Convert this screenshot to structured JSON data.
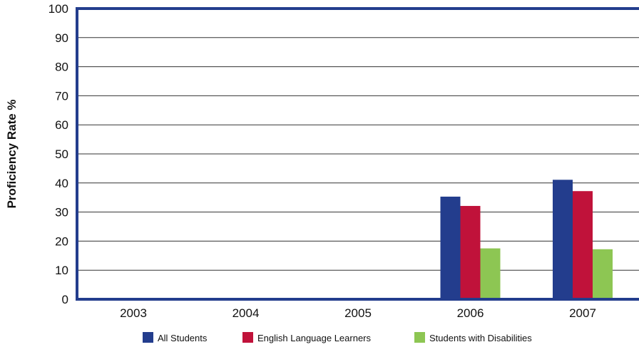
{
  "chart_data": {
    "type": "bar",
    "ylabel": "Proficiency Rate %",
    "xlabel": "",
    "categories": [
      "2003",
      "2004",
      "2005",
      "2006",
      "2007"
    ],
    "ylim": [
      0,
      100
    ],
    "yticks": [
      0,
      10,
      20,
      30,
      40,
      50,
      60,
      70,
      80,
      90,
      100
    ],
    "grid": true,
    "legend_position": "bottom",
    "series": [
      {
        "name": "All Students",
        "color": "#233d8d",
        "values": [
          null,
          null,
          null,
          35.3,
          41.1
        ]
      },
      {
        "name": "English Language Learners",
        "color": "#c0123a",
        "values": [
          null,
          null,
          null,
          32.1,
          37.2
        ]
      },
      {
        "name": "Students with Disabilities",
        "color": "#8dc653",
        "values": [
          null,
          null,
          null,
          17.5,
          17.2
        ]
      }
    ],
    "frame_color": "#233d8d"
  }
}
